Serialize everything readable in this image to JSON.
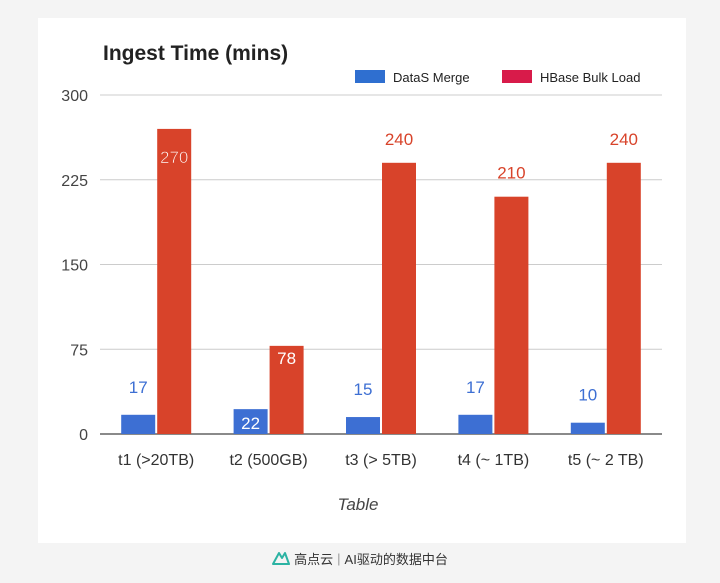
{
  "chart_data": {
    "type": "bar",
    "title": "Ingest Time (mins)",
    "xlabel": "Table",
    "ylabel": "",
    "categories": [
      "t1 (>20TB)",
      "t2 (500GB)",
      "t3 (> 5TB)",
      "t4 (~ 1TB)",
      "t5 (~ 2 TB)"
    ],
    "series": [
      {
        "name": "DataS  Merge",
        "values": [
          17,
          22,
          15,
          17,
          10
        ],
        "color": "#3d6fd3"
      },
      {
        "name": "HBase  Bulk  Load",
        "values": [
          270,
          78,
          240,
          210,
          240
        ],
        "color": "#d8432a"
      }
    ],
    "ylim": [
      0,
      300
    ],
    "yticks": [
      0,
      75,
      150,
      225,
      300
    ],
    "grid": true,
    "legend": "top-right",
    "legend_swatch_colors": [
      "#2f6fd0",
      "#d81b4a"
    ]
  },
  "watermark": {
    "brand": "高点云",
    "separator": "|",
    "slogan": "AI驱动的数据中台"
  }
}
